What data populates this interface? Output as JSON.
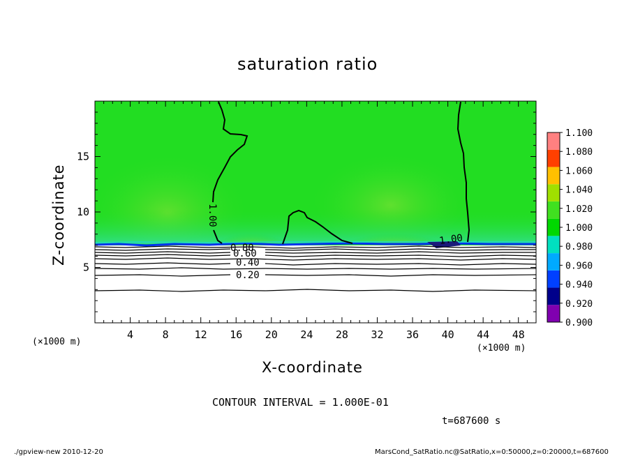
{
  "chart_data": {
    "type": "heatmap",
    "title": "saturation ratio",
    "xlabel": "X-coordinate",
    "ylabel": "Z-coordinate",
    "x_unit": "(×1000 m)",
    "x_unit_right": "(×1000 m)",
    "xlim": [
      0,
      50
    ],
    "ylim": [
      0,
      20
    ],
    "x_ticks": [
      "4",
      "8",
      "12",
      "16",
      "20",
      "24",
      "28",
      "32",
      "36",
      "40",
      "44",
      "48"
    ],
    "y_ticks": [
      "5",
      "10",
      "15"
    ],
    "colorbar_levels": [
      "0.900",
      "0.920",
      "0.940",
      "0.960",
      "0.980",
      "1.000",
      "1.020",
      "1.040",
      "1.060",
      "1.080",
      "1.100"
    ],
    "colorbar_colors": [
      "#8000b0",
      "#00008b",
      "#0040ff",
      "#00aaff",
      "#00e0c0",
      "#00d800",
      "#40e020",
      "#a0e000",
      "#ffc000",
      "#ff4000",
      "#ff8080"
    ],
    "contour_interval_text": "CONTOUR INTERVAL = 1.000E-01",
    "contour_labels": [
      "1.00",
      "1.00",
      "0.80",
      "0.60",
      "0.40",
      "0.20"
    ],
    "time_text": "t=687600  s",
    "surface_height_approx": 7.1
  },
  "footer": {
    "left": "./gpview-new   2010-12-20",
    "right": "MarsCond_SatRatio.nc@SatRatio,x=0:50000,z=0:20000,t=687600"
  },
  "colors": {
    "field_green": "#22dd22",
    "frame": "#000000"
  }
}
